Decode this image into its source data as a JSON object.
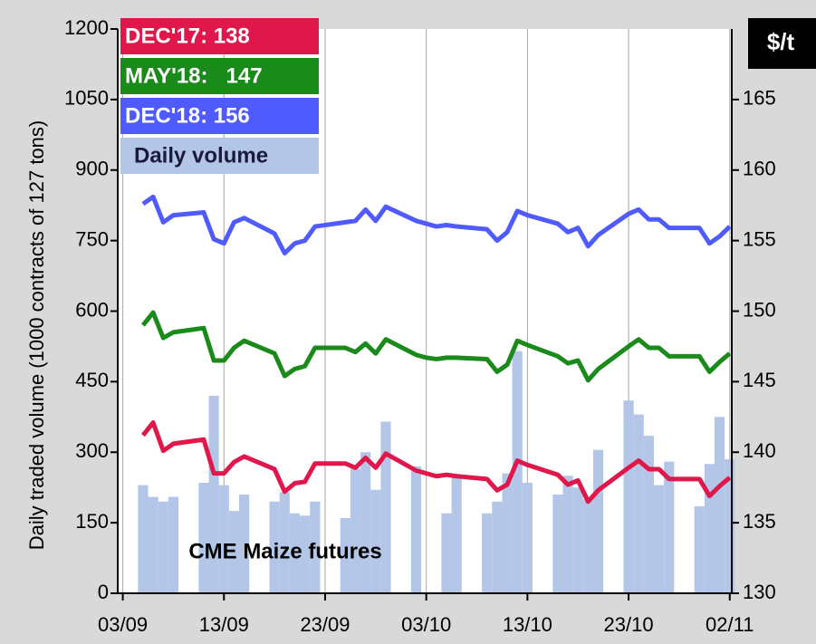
{
  "chart_data": {
    "type": "combo",
    "annotation": "CME Maize futures",
    "ylabel": "Daily traded volume (1000 contracts of 127 tons)",
    "y2label": "$/t",
    "x": [
      2,
      3,
      4,
      5,
      8,
      9,
      10,
      11,
      12,
      15,
      16,
      17,
      18,
      19,
      22,
      23,
      24,
      25,
      26,
      29,
      30,
      31,
      32,
      33,
      36,
      37,
      38,
      39,
      40,
      43,
      44,
      45,
      46,
      47,
      50,
      51,
      52,
      53,
      54,
      57,
      58,
      59,
      60
    ],
    "xlim": [
      -0.5,
      60.2
    ],
    "xticks": [
      {
        "value": 0,
        "label": "03/09"
      },
      {
        "value": 10,
        "label": "13/09"
      },
      {
        "value": 20,
        "label": "23/09"
      },
      {
        "value": 30,
        "label": "03/10"
      },
      {
        "value": 40,
        "label": "13/10"
      },
      {
        "value": 50,
        "label": "23/10"
      },
      {
        "value": 60,
        "label": "02/11"
      }
    ],
    "ylim": [
      0,
      1200
    ],
    "yticks": [
      0,
      150,
      300,
      450,
      600,
      750,
      900,
      1050,
      1200
    ],
    "y2lim": [
      130,
      170
    ],
    "y2ticks": [
      130,
      135,
      140,
      145,
      150,
      155,
      160,
      165
    ],
    "grid": "x",
    "series": [
      {
        "name": "DEC'17: 138",
        "type": "line",
        "axis": "y2",
        "color": "#e0174a",
        "values": [
          141.2,
          142.1,
          140.1,
          140.6,
          140.9,
          138.5,
          138.5,
          139.3,
          139.7,
          138.8,
          137.2,
          137.8,
          137.9,
          139.2,
          139.2,
          138.9,
          139.6,
          138.9,
          139.9,
          138.7,
          138.5,
          138.3,
          138.4,
          138.3,
          138.1,
          137.3,
          137.7,
          139.4,
          139.1,
          138.4,
          137.7,
          138.0,
          136.5,
          137.3,
          138.9,
          139.4,
          138.8,
          138.8,
          138.1,
          138.1,
          136.9,
          137.6,
          138.2
        ]
      },
      {
        "name": "MAY'18:   147",
        "type": "line",
        "axis": "y2",
        "color": "#1a8a1a",
        "values": [
          149.0,
          149.9,
          148.1,
          148.5,
          148.8,
          146.5,
          146.5,
          147.4,
          147.9,
          147.0,
          145.4,
          145.9,
          146.1,
          147.4,
          147.4,
          147.1,
          147.7,
          147.0,
          148.0,
          146.9,
          146.7,
          146.6,
          146.7,
          146.7,
          146.6,
          145.7,
          146.2,
          147.9,
          147.6,
          146.8,
          146.3,
          146.5,
          145.1,
          145.9,
          147.5,
          148.0,
          147.4,
          147.4,
          146.8,
          146.8,
          145.7,
          146.4,
          147.0
        ]
      },
      {
        "name": "DEC'18: 156",
        "type": "line",
        "axis": "y2",
        "color": "#4f5bff",
        "values": [
          157.6,
          158.1,
          156.3,
          156.8,
          157.0,
          155.1,
          154.8,
          156.3,
          156.6,
          155.5,
          154.1,
          154.8,
          155.0,
          156.0,
          156.3,
          156.4,
          157.2,
          156.4,
          157.4,
          156.4,
          156.2,
          156.0,
          156.1,
          156.0,
          155.8,
          155.0,
          155.6,
          157.1,
          156.8,
          156.2,
          155.6,
          155.9,
          154.6,
          155.4,
          156.9,
          157.2,
          156.5,
          156.5,
          155.9,
          155.9,
          154.8,
          155.3,
          156.0
        ]
      },
      {
        "name": "Daily volume",
        "type": "bar",
        "axis": "y",
        "color": "#b4c6e7",
        "values": [
          230,
          205,
          195,
          205,
          235,
          420,
          230,
          175,
          210,
          195,
          215,
          170,
          165,
          195,
          160,
          265,
          300,
          220,
          365,
          270,
          null,
          null,
          170,
          250,
          170,
          195,
          255,
          515,
          235,
          210,
          250,
          225,
          200,
          305,
          410,
          380,
          335,
          230,
          280,
          185,
          275,
          375,
          285
        ]
      }
    ]
  }
}
